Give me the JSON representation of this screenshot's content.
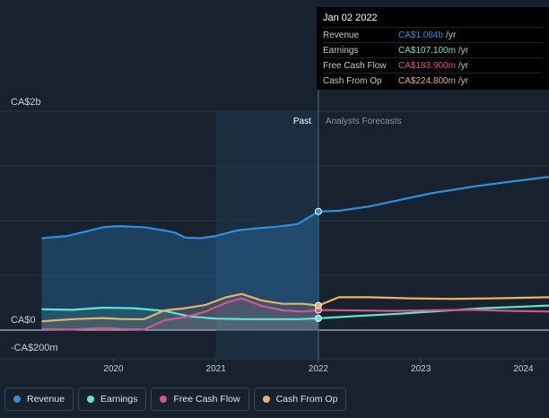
{
  "chart_data": {
    "type": "area",
    "x_ticks": [
      "2020",
      "2021",
      "2022",
      "2023",
      "2024"
    ],
    "y_labels": [
      "CA$2b",
      "CA$0",
      "-CA$200m"
    ],
    "zones": {
      "past": "Past",
      "forecast": "Analysts Forecasts"
    },
    "series": [
      {
        "name": "Revenue",
        "color": "#2e8fde",
        "points": [
          [
            2019.3,
            0.84
          ],
          [
            2019.55,
            0.86
          ],
          [
            2019.9,
            0.94
          ],
          [
            2020.05,
            0.95
          ],
          [
            2020.3,
            0.94
          ],
          [
            2020.5,
            0.91
          ],
          [
            2020.6,
            0.89
          ],
          [
            2020.7,
            0.845
          ],
          [
            2020.85,
            0.84
          ],
          [
            2021.0,
            0.86
          ],
          [
            2021.2,
            0.91
          ],
          [
            2021.4,
            0.93
          ],
          [
            2021.6,
            0.945
          ],
          [
            2021.8,
            0.97
          ],
          [
            2022.0,
            1.084
          ],
          [
            2022.2,
            1.09
          ],
          [
            2022.5,
            1.13
          ],
          [
            2022.8,
            1.19
          ],
          [
            2023.1,
            1.25
          ],
          [
            2023.5,
            1.31
          ],
          [
            2023.9,
            1.36
          ],
          [
            2024.25,
            1.4
          ]
        ]
      },
      {
        "name": "Earnings",
        "color": "#5ce6d5",
        "points": [
          [
            2019.3,
            0.19
          ],
          [
            2019.6,
            0.185
          ],
          [
            2019.9,
            0.205
          ],
          [
            2020.2,
            0.2
          ],
          [
            2020.5,
            0.175
          ],
          [
            2020.75,
            0.125
          ],
          [
            2021.0,
            0.105
          ],
          [
            2021.3,
            0.1
          ],
          [
            2021.8,
            0.1
          ],
          [
            2022.0,
            0.1071
          ],
          [
            2022.4,
            0.13
          ],
          [
            2022.8,
            0.15
          ],
          [
            2023.2,
            0.175
          ],
          [
            2023.6,
            0.2
          ],
          [
            2024.0,
            0.215
          ],
          [
            2024.25,
            0.225
          ]
        ]
      },
      {
        "name": "Free Cash Flow",
        "color": "#d9548c",
        "points": [
          [
            2019.3,
            0.01
          ],
          [
            2019.6,
            0.005
          ],
          [
            2019.9,
            0.02
          ],
          [
            2020.1,
            0.01
          ],
          [
            2020.3,
            0.005
          ],
          [
            2020.5,
            0.09
          ],
          [
            2020.7,
            0.12
          ],
          [
            2020.9,
            0.17
          ],
          [
            2021.1,
            0.25
          ],
          [
            2021.25,
            0.29
          ],
          [
            2021.45,
            0.22
          ],
          [
            2021.65,
            0.18
          ],
          [
            2021.85,
            0.17
          ],
          [
            2022.0,
            0.1839
          ],
          [
            2022.3,
            0.18
          ],
          [
            2022.7,
            0.175
          ],
          [
            2023.1,
            0.18
          ],
          [
            2023.5,
            0.185
          ],
          [
            2023.9,
            0.175
          ],
          [
            2024.25,
            0.17
          ]
        ]
      },
      {
        "name": "Cash From Op",
        "color": "#e8b462",
        "points": [
          [
            2019.3,
            0.08
          ],
          [
            2019.6,
            0.1
          ],
          [
            2019.9,
            0.11
          ],
          [
            2020.1,
            0.1
          ],
          [
            2020.3,
            0.1
          ],
          [
            2020.5,
            0.18
          ],
          [
            2020.7,
            0.2
          ],
          [
            2020.9,
            0.23
          ],
          [
            2021.1,
            0.3
          ],
          [
            2021.25,
            0.33
          ],
          [
            2021.45,
            0.27
          ],
          [
            2021.65,
            0.24
          ],
          [
            2021.85,
            0.24
          ],
          [
            2022.0,
            0.2248
          ],
          [
            2022.2,
            0.3
          ],
          [
            2022.5,
            0.3
          ],
          [
            2022.9,
            0.29
          ],
          [
            2023.3,
            0.285
          ],
          [
            2023.7,
            0.29
          ],
          [
            2024.25,
            0.3
          ]
        ]
      }
    ],
    "y_range": [
      -0.2,
      2.0
    ],
    "x_range": [
      2019.2,
      2024.25
    ],
    "highlight_x": 2022.0,
    "grid": true,
    "legend_placement": "bottom-left"
  },
  "tooltip": {
    "date": "Jan 02 2022",
    "rows": [
      {
        "label": "Revenue",
        "value": "CA$1.084b",
        "unit": "/yr",
        "color": "#2e8fde"
      },
      {
        "label": "Earnings",
        "value": "CA$107.100m",
        "unit": "/yr",
        "color": "#5ce6d5"
      },
      {
        "label": "Free Cash Flow",
        "value": "CA$183.900m",
        "unit": "/yr",
        "color": "#d9548c"
      },
      {
        "label": "Cash From Op",
        "value": "CA$224.800m",
        "unit": "/yr",
        "color": "#e8b462"
      }
    ]
  },
  "legend": [
    {
      "label": "Revenue",
      "color": "#2e8fde"
    },
    {
      "label": "Earnings",
      "color": "#5ce6d5"
    },
    {
      "label": "Free Cash Flow",
      "color": "#d9548c"
    },
    {
      "label": "Cash From Op",
      "color": "#e8b462"
    }
  ]
}
